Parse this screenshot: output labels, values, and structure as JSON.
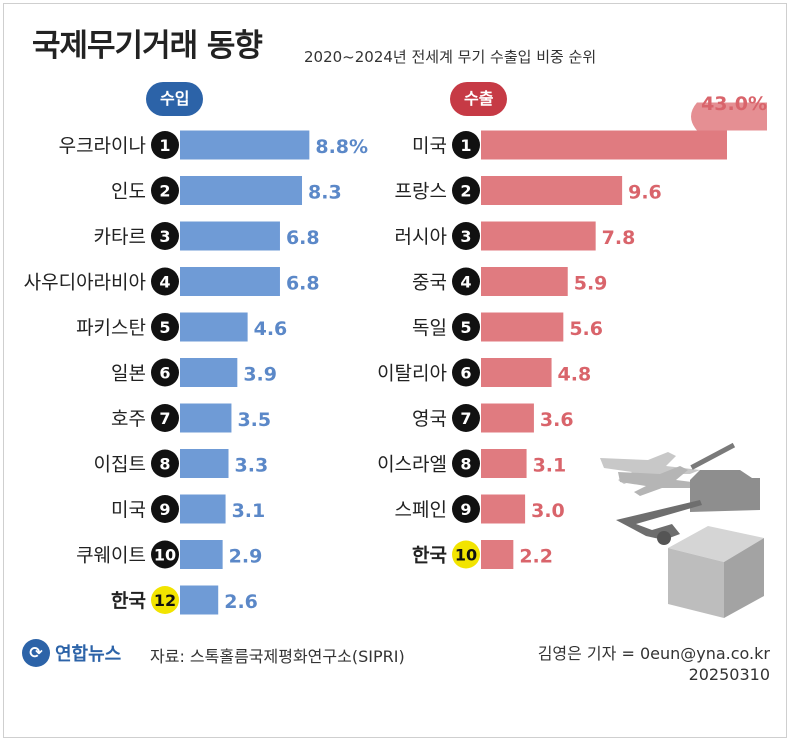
{
  "title": "국제무기거래 동향",
  "subtitle": "2020~2024년 전세계 무기 수출입 비중 순위",
  "import_label": "수입",
  "export_label": "수출",
  "source": "자료: 스톡홀름국제평화연구소(SIPRI)",
  "credit": "김영은 기자 = 0eun@yna.co.kr",
  "date": "20250310",
  "logo_text": "연합뉴스",
  "colors": {
    "import_bar": "#6f9bd6",
    "import_text": "#5b88c8",
    "export_bar": "#e07b80",
    "export_text": "#d9646b",
    "highlight": "#f2e400"
  },
  "chart_data": [
    {
      "type": "bar",
      "title": "수입",
      "unit": "%",
      "categories": [
        "우크라이나",
        "인도",
        "카타르",
        "사우디아라비아",
        "파키스탄",
        "일본",
        "호주",
        "이집트",
        "미국",
        "쿠웨이트",
        "한국"
      ],
      "ranks": [
        "1",
        "2",
        "3",
        "4",
        "5",
        "6",
        "7",
        "8",
        "9",
        "10",
        "12"
      ],
      "values": [
        8.8,
        8.3,
        6.8,
        6.8,
        4.6,
        3.9,
        3.5,
        3.3,
        3.1,
        2.9,
        2.6
      ],
      "labels": [
        "8.8%",
        "8.3",
        "6.8",
        "6.8",
        "4.6",
        "3.9",
        "3.5",
        "3.3",
        "3.1",
        "2.9",
        "2.6"
      ],
      "highlight": "한국"
    },
    {
      "type": "bar",
      "title": "수출",
      "unit": "%",
      "categories": [
        "미국",
        "프랑스",
        "러시아",
        "중국",
        "독일",
        "이탈리아",
        "영국",
        "이스라엘",
        "스페인",
        "한국"
      ],
      "ranks": [
        "1",
        "2",
        "3",
        "4",
        "5",
        "6",
        "7",
        "8",
        "9",
        "10"
      ],
      "values": [
        43.0,
        9.6,
        7.8,
        5.9,
        5.6,
        4.8,
        3.6,
        3.1,
        3.0,
        2.2
      ],
      "labels": [
        "43.0%",
        "9.6",
        "7.8",
        "5.9",
        "5.6",
        "4.8",
        "3.6",
        "3.1",
        "3.0",
        "2.2"
      ],
      "highlight": "한국"
    }
  ]
}
